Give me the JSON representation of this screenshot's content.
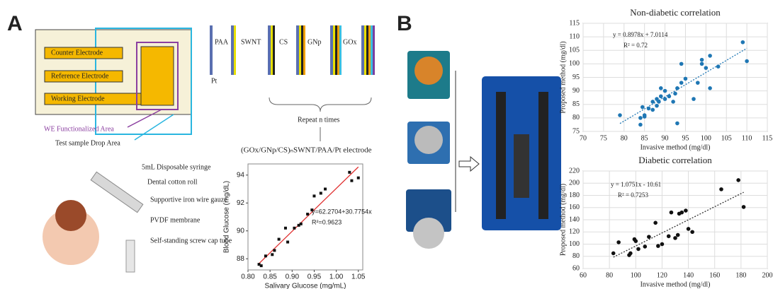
{
  "panel_a": {
    "label": "A",
    "electrode": {
      "counter": "Counter Electrode",
      "reference": "Reference Electrode",
      "working": "Working Electrode",
      "we_area": "WE Functionalized Area",
      "drop_area": "Test sample Drop Area"
    },
    "layers": [
      "PAA",
      "SWNT",
      "CS",
      "GNp",
      "GOx"
    ],
    "base": "Pt",
    "repeat": "Repeat n times",
    "formula": "(GOx/GNp/CS)ₙSWNT/PAA/Pt electrode",
    "sampler": [
      "5mL Disposable syringe",
      "Dental cotton roll",
      "Supportive iron wire gauze",
      "PVDF membrane",
      "Self-standing screw cap tube"
    ]
  },
  "panel_b": {
    "label": "B"
  },
  "chart_data": [
    {
      "type": "scatter",
      "xlabel": "Salivary Glucose (mg/mL)",
      "ylabel": "Blood Glucose (mg/dL)",
      "color": "#111111",
      "line_color": "#e03030",
      "grid": false,
      "x": [
        0.825,
        0.83,
        0.84,
        0.855,
        0.86,
        0.87,
        0.885,
        0.89,
        0.905,
        0.915,
        0.92,
        0.935,
        0.945,
        0.95,
        0.965,
        0.975,
        1.03,
        1.035,
        1.05
      ],
      "values": [
        87.6,
        87.5,
        88.2,
        88.3,
        88.6,
        89.4,
        90.2,
        89.2,
        90.2,
        90.4,
        90.5,
        91.2,
        91.5,
        92.5,
        92.7,
        93.0,
        94.2,
        93.6,
        93.8
      ],
      "trendline": {
        "slope": 30.7754,
        "intercept": 62.2704
      },
      "annotations": [
        "y=62.2704+30.7754x",
        "R²=0.9623"
      ],
      "xlim": [
        0.8,
        1.06
      ],
      "xticks": [
        {
          "value": 0.8,
          "label": "0.80"
        },
        0.85,
        {
          "value": 0.9,
          "label": "0.90"
        },
        0.95,
        {
          "value": 1.0,
          "label": "1.00"
        },
        1.05
      ],
      "ylim": [
        87.2,
        94.8
      ],
      "yticks": [
        88,
        90,
        92,
        94
      ]
    },
    {
      "type": "scatter",
      "title": "Non-diabetic correlation",
      "xlabel": "Invasive method (mg/dl)",
      "ylabel": "Proposed method (mg/dl)",
      "color": "#1f77b4",
      "line_color": "#1f77b4",
      "grid": true,
      "x": [
        79,
        84,
        84,
        84.5,
        85,
        85,
        86,
        87,
        87,
        88,
        88,
        88.5,
        89,
        89,
        90,
        90,
        91,
        92,
        92.5,
        93,
        93,
        94,
        94,
        95,
        97,
        98,
        99,
        99,
        100,
        101,
        101,
        103,
        109,
        110
      ],
      "values": [
        81,
        77.5,
        80,
        84,
        80.5,
        81,
        83.5,
        83,
        86,
        87,
        84.5,
        86,
        88,
        91,
        90,
        87,
        88,
        86,
        89,
        91,
        78,
        100,
        93,
        94.5,
        87,
        93,
        100,
        101.5,
        98.5,
        103,
        91,
        99,
        108,
        101
      ],
      "trendline": {
        "slope": 0.8978,
        "intercept": 7.0114
      },
      "annotations": [
        "y = 0.8978x + 7.0114",
        "R² = 0.72"
      ],
      "xlim": [
        70,
        115
      ],
      "xticks": [
        70,
        75,
        80,
        85,
        90,
        95,
        100,
        105,
        110,
        115
      ],
      "ylim": [
        75,
        115
      ],
      "yticks": [
        75,
        80,
        85,
        90,
        95,
        100,
        105,
        110,
        115
      ]
    },
    {
      "type": "scatter",
      "title": "Diabetic correlation",
      "xlabel": "Invasive method (mg/dl)",
      "ylabel": "Proposed method (mg/dl)",
      "color": "#111111",
      "line_color": "#333333",
      "grid": true,
      "x": [
        83,
        87,
        95,
        96,
        99,
        100,
        102,
        107,
        110,
        115,
        117,
        120,
        125,
        127,
        130,
        132,
        133,
        135,
        138,
        140,
        143,
        165,
        178,
        182
      ],
      "values": [
        85,
        103,
        82,
        85,
        108,
        105,
        92,
        96,
        112,
        135,
        97,
        100,
        113,
        152,
        110,
        115,
        150,
        152,
        155,
        125,
        120,
        190,
        205,
        161
      ],
      "trendline": {
        "slope": 1.0751,
        "intercept": -10.61
      },
      "annotations": [
        "y = 1.0751x - 10.61",
        "R² = 0.7253"
      ],
      "xlim": [
        60,
        200
      ],
      "xticks": [
        60,
        80,
        100,
        120,
        140,
        160,
        180,
        200
      ],
      "ylim": [
        60,
        220
      ],
      "yticks": [
        60,
        80,
        100,
        120,
        140,
        160,
        180,
        200,
        220
      ]
    }
  ]
}
